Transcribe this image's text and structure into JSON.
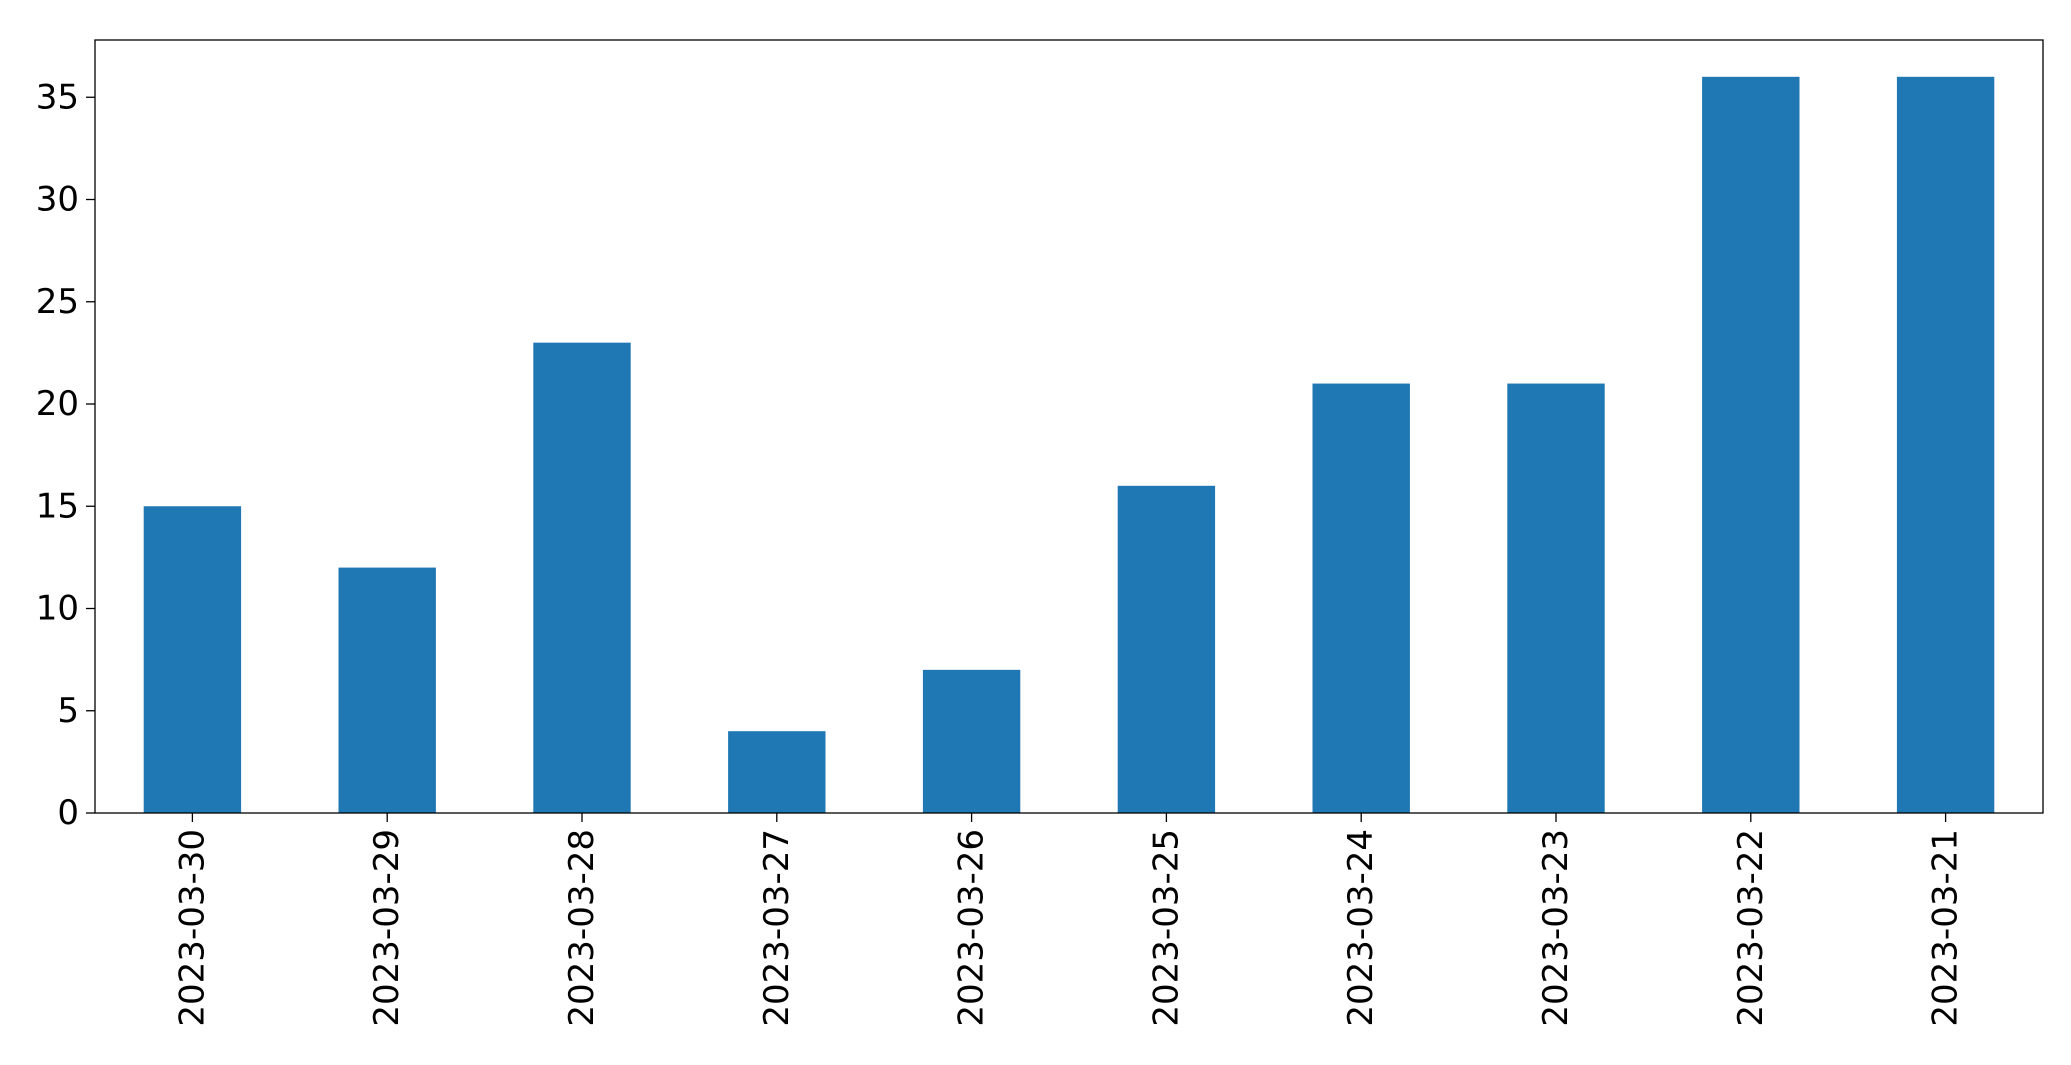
{
  "chart_data": {
    "type": "bar",
    "categories": [
      "2023-03-30",
      "2023-03-29",
      "2023-03-28",
      "2023-03-27",
      "2023-03-26",
      "2023-03-25",
      "2023-03-24",
      "2023-03-23",
      "2023-03-22",
      "2023-03-21"
    ],
    "values": [
      15,
      12,
      23,
      4,
      7,
      16,
      21,
      21,
      36,
      36
    ],
    "title": "",
    "xlabel": "",
    "ylabel": "",
    "ylim": [
      0,
      37.8
    ],
    "yticks": [
      0,
      5,
      10,
      15,
      20,
      25,
      30,
      35
    ],
    "grid": false,
    "legend": "none",
    "bar_color": "#1f77b4",
    "axis_color": "#000000"
  }
}
